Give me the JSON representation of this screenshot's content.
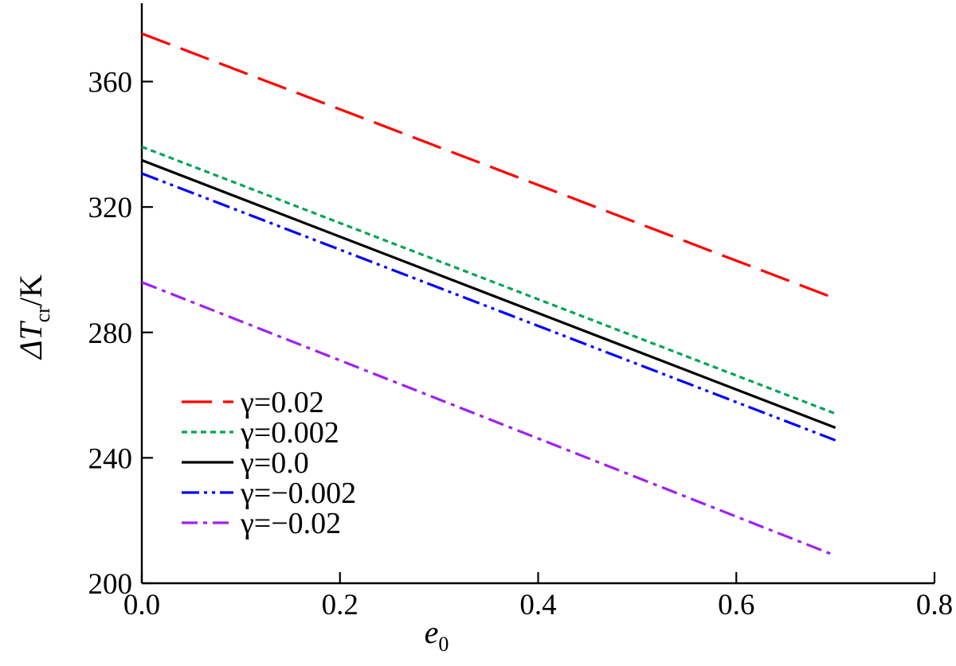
{
  "chart_data": {
    "type": "line",
    "xlabel": "e",
    "xlabel_sub": "0",
    "ylabel": {
      "prefix": "ΔT",
      "sub": "cr",
      "suffix": "/K"
    },
    "xlim": [
      0.0,
      0.8
    ],
    "ylim": [
      200,
      385
    ],
    "xticks": [
      {
        "value": 0.0,
        "label": "0.0"
      },
      {
        "value": 0.2,
        "label": "0.2"
      },
      {
        "value": 0.4,
        "label": "0.4"
      },
      {
        "value": 0.6,
        "label": "0.6"
      },
      {
        "value": 0.8,
        "label": "0.8"
      }
    ],
    "yticks": [
      {
        "value": 200,
        "label": "200"
      },
      {
        "value": 240,
        "label": "240"
      },
      {
        "value": 280,
        "label": "280"
      },
      {
        "value": 320,
        "label": "320"
      },
      {
        "value": 360,
        "label": "360"
      }
    ],
    "grid": false,
    "legend_position": "lower-left",
    "series": [
      {
        "name": "γ=0.02",
        "x": [
          0.0,
          0.7
        ],
        "y": [
          375.3,
          290.8
        ],
        "color": "#ff0000",
        "dash": "long-dash"
      },
      {
        "name": "γ=0.002",
        "x": [
          0.0,
          0.7
        ],
        "y": [
          339.2,
          254.1
        ],
        "color": "#00a651",
        "dash": "dotted"
      },
      {
        "name": "γ=0.0",
        "x": [
          0.0,
          0.7
        ],
        "y": [
          334.9,
          249.6
        ],
        "color": "#000000",
        "dash": "solid"
      },
      {
        "name": "γ=−0.002",
        "x": [
          0.0,
          0.7
        ],
        "y": [
          330.7,
          245.6
        ],
        "color": "#0000ff",
        "dash": "dash-dot-dot"
      },
      {
        "name": "γ=−0.02",
        "x": [
          0.0,
          0.7
        ],
        "y": [
          296.0,
          208.8
        ],
        "color": "#a020f0",
        "dash": "dash-dot"
      }
    ]
  }
}
